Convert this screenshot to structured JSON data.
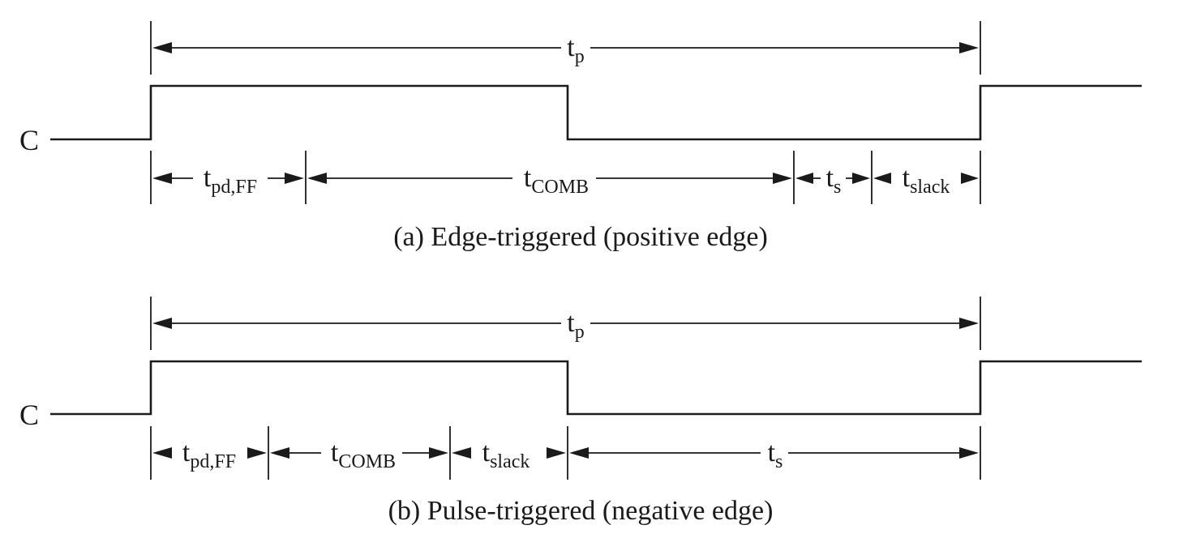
{
  "panels": [
    {
      "signal": "C",
      "caption": "(a) Edge-triggered (positive edge)",
      "period": {
        "main": "t",
        "sub": "p"
      },
      "intervals": [
        {
          "main": "t",
          "sub": "pd,FF"
        },
        {
          "main": "t",
          "sub": "COMB"
        },
        {
          "main": "t",
          "sub": "s"
        },
        {
          "main": "t",
          "sub": "slack"
        }
      ]
    },
    {
      "signal": "C",
      "caption": "(b) Pulse-triggered (negative edge)",
      "period": {
        "main": "t",
        "sub": "p"
      },
      "intervals": [
        {
          "main": "t",
          "sub": "pd,FF"
        },
        {
          "main": "t",
          "sub": "COMB"
        },
        {
          "main": "t",
          "sub": "slack"
        },
        {
          "main": "t",
          "sub": "s"
        }
      ]
    }
  ]
}
